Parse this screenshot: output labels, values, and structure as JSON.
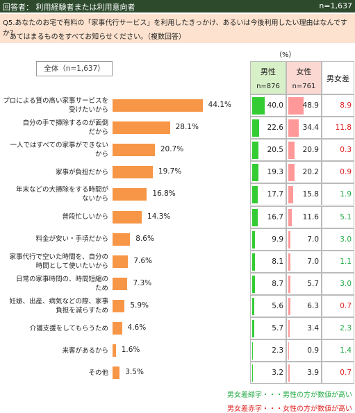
{
  "header": {
    "respondents": "回答者： 利用経験者または利用意向者",
    "n": "n=1,637"
  },
  "question": [
    "Q5.あなたのお宅で有料の「家事代行サービス」を利用したきっかけ、あるいは今後利用したい理由はなんですか？",
    "あてはまるものをすべてお知らせください。（複数回答）"
  ],
  "chart_data": {
    "type": "bar",
    "orientation": "horizontal",
    "subtitle": "全体（n=1,637）",
    "categories": [
      "プロによる質の高い家事サービスを\n受けたいから",
      "自分の手で掃除するのが面倒\nだから",
      "一人ではすべての家事ができない\nから",
      "家事が負担だから",
      "年末などの大掃除をする時間が\nないから",
      "普段忙しいから",
      "料金が安い・手頃だから",
      "家事代行で空いた時間を、自分の\n時間として使いたいから",
      "日常の家事時間の、時間短縮の\nため",
      "妊娠、出産、病気などの際、家事\n負担を減らすため",
      "介護支援をしてもらうため",
      "来客があるから",
      "その他"
    ],
    "values": [
      44.1,
      28.1,
      20.7,
      19.7,
      16.8,
      14.3,
      8.6,
      7.6,
      7.3,
      5.9,
      4.6,
      1.6,
      3.5
    ],
    "value_labels": [
      "44.1%",
      "28.1%",
      "20.7%",
      "19.7%",
      "16.8%",
      "14.3%",
      "8.6%",
      "7.6%",
      "7.3%",
      "5.9%",
      "4.6%",
      "1.6%",
      "3.5%"
    ],
    "color": "#f79646",
    "xlim": [
      0,
      50
    ]
  },
  "table": {
    "unit": "（%）",
    "columns": [
      {
        "name": "男性",
        "n": "n=876",
        "color": "#33cc33",
        "header_color": "#d8f0c8",
        "xlim": [
          0,
          100
        ],
        "values": [
          40.0,
          22.6,
          20.5,
          19.3,
          17.7,
          16.7,
          9.9,
          8.1,
          8.7,
          5.6,
          5.7,
          2.3,
          3.2
        ],
        "value_labels": [
          "40.0",
          "22.6",
          "20.5",
          "19.3",
          "17.7",
          "16.7",
          "9.9",
          "8.1",
          "8.7",
          "5.6",
          "5.7",
          "2.3",
          "3.2"
        ]
      },
      {
        "name": "女性",
        "n": "n=761",
        "color": "#ff9999",
        "header_color": "#fbd9d2",
        "xlim": [
          0,
          100
        ],
        "values": [
          48.9,
          34.4,
          20.9,
          20.2,
          15.8,
          11.6,
          7.0,
          7.0,
          5.7,
          6.3,
          3.4,
          0.9,
          3.9
        ],
        "value_labels": [
          "48.9",
          "34.4",
          "20.9",
          "20.2",
          "15.8",
          "11.6",
          "7.0",
          "7.0",
          "5.7",
          "6.3",
          "3.4",
          "0.9",
          "3.9"
        ]
      },
      {
        "name": "男女差",
        "values": [
          8.9,
          11.8,
          0.3,
          0.9,
          1.9,
          5.1,
          3.0,
          1.1,
          3.0,
          0.7,
          2.3,
          1.4,
          0.7
        ],
        "value_labels": [
          "8.9",
          "11.8",
          "0.3",
          "0.9",
          "1.9",
          "5.1",
          "3.0",
          "1.1",
          "3.0",
          "0.7",
          "2.3",
          "1.4",
          "0.7"
        ]
      }
    ],
    "notes": [
      {
        "text": "男女差緑字・・・男性の方が数値が高い",
        "color": "#22aa44"
      },
      {
        "text": "男女差赤字・・・女性の方が数値が高い",
        "color": "#e02020"
      }
    ]
  }
}
